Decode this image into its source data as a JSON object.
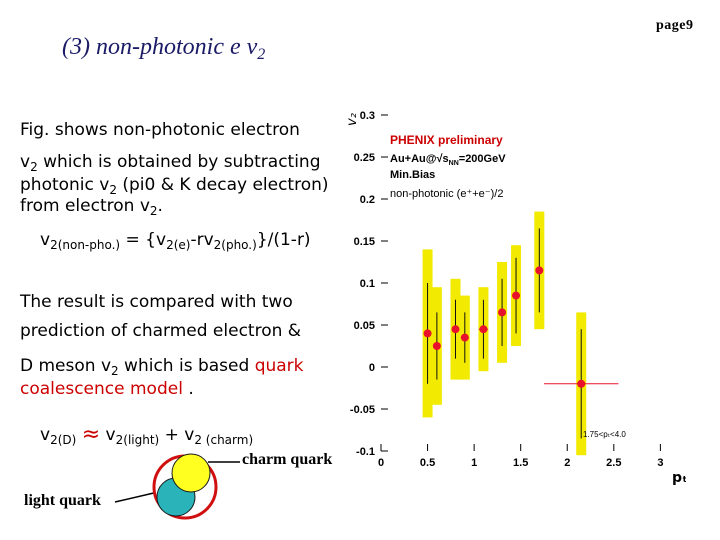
{
  "slide": {
    "title_main": "(3) non-photonic e v",
    "title_sub": "2",
    "page": "page9"
  },
  "text": {
    "line1": "Fig. shows non-photonic electron",
    "line2_v": "v",
    "line2_sub": "2",
    "line2_rest": " which is obtained by subtracting",
    "line3_a": "photonic v",
    "line3_sub": "2",
    "line3_b": " (pi0 & K decay electron)",
    "line4_a": "from electron v",
    "line4_sub": "2",
    "line4_b": ".",
    "result1": "The result is compared with two",
    "result2": "prediction of charmed electron &",
    "result3_a": "D meson v",
    "result3_sub": "2",
    "result3_b": " which  is based ",
    "result3_red": "quark",
    "result4_red": "coalescence model",
    "result4_b": " ."
  },
  "formula1": {
    "v": "v",
    "sub1": "2(non-pho.)",
    "eq": " = {v",
    "sub2": "2(e)",
    "mid": "-rv",
    "sub3": "2(pho.)",
    "end": "}/(1-r)"
  },
  "formula2": {
    "v": "v",
    "sub1": "2(D)",
    "approx": "≈",
    "v2": " v",
    "sub2": "2(light)",
    "plus": " + v",
    "sub3": "2 (charm)"
  },
  "labels": {
    "charm_quark": "charm quark",
    "light_quark": "light quark"
  },
  "chart_data": {
    "type": "scatter",
    "ylabel": "v₂",
    "xlabel": "pₜ",
    "xlim": [
      0,
      3.2
    ],
    "ylim": [
      -0.1,
      0.3
    ],
    "xticks": [
      "0",
      "0.5",
      "1",
      "1.5",
      "2",
      "2.5",
      "3"
    ],
    "yticks": [
      "-0.1",
      "-0.05",
      "0",
      "0.05",
      "0.1",
      "0.15",
      "0.2",
      "0.25",
      "0.3"
    ],
    "legend": [
      "PHENIX preliminary",
      "Au+Au@√s",
      "NN",
      "=200GeV",
      "Min.Bias",
      "non-photonic (e⁺+e⁻)/2"
    ],
    "cut_label": "1.75<pₜ<4.0",
    "points": [
      {
        "x": 0.5,
        "y": 0.04,
        "yerr": 0.06,
        "sys": 0.1,
        "xerr": 0
      },
      {
        "x": 0.6,
        "y": 0.025,
        "yerr": 0.04,
        "sys": 0.07,
        "xerr": 0
      },
      {
        "x": 0.8,
        "y": 0.045,
        "yerr": 0.035,
        "sys": 0.06,
        "xerr": 0
      },
      {
        "x": 0.9,
        "y": 0.035,
        "yerr": 0.03,
        "sys": 0.05,
        "xerr": 0
      },
      {
        "x": 1.1,
        "y": 0.045,
        "yerr": 0.035,
        "sys": 0.05,
        "xerr": 0.05
      },
      {
        "x": 1.3,
        "y": 0.065,
        "yerr": 0.04,
        "sys": 0.06,
        "xerr": 0
      },
      {
        "x": 1.45,
        "y": 0.085,
        "yerr": 0.045,
        "sys": 0.06,
        "xerr": 0
      },
      {
        "x": 1.7,
        "y": 0.115,
        "yerr": 0.05,
        "sys": 0.07,
        "xerr": 0
      },
      {
        "x": 2.15,
        "y": -0.02,
        "yerr": 0.065,
        "sys": 0.085,
        "xerr": 0.4
      }
    ],
    "colors": {
      "marker": "#e8102a",
      "systematic": "#f2ea00",
      "error": "#111111"
    }
  }
}
